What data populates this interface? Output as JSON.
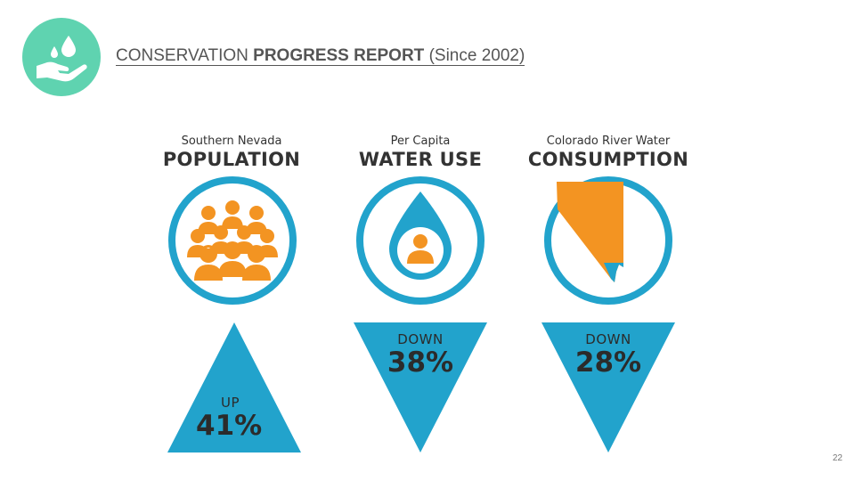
{
  "title": {
    "prefix": "CONSERVATION",
    "bold": "PROGRESS REPORT",
    "suffix": "(Since 2002)"
  },
  "columns": [
    {
      "subtitle": "Southern Nevada",
      "heading": "POPULATION",
      "direction": "UP",
      "percent": "41%"
    },
    {
      "subtitle": "Per Capita",
      "heading": "WATER USE",
      "direction": "DOWN",
      "percent": "38%"
    },
    {
      "subtitle": "Colorado River Water",
      "heading": "CONSUMPTION",
      "direction": "DOWN",
      "percent": "28%"
    }
  ],
  "page_number": "22",
  "colors": {
    "teal": "#5fd3b0",
    "blue": "#22a3cc",
    "orange": "#f39422"
  }
}
